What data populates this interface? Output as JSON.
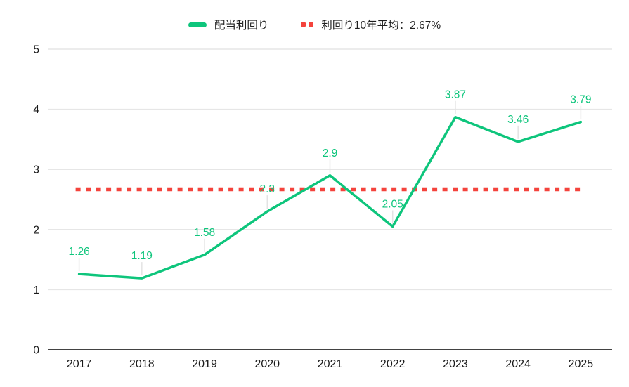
{
  "legend": {
    "series_label": "配当利回り",
    "average_label": "利回り10年平均：2.67%"
  },
  "colors": {
    "series_line": "#0ec57c",
    "series_label_text": "#0ec57c",
    "average_line": "#f4433c",
    "gridline": "#e6e6e6",
    "zero_axis": "#424242",
    "axis_tick_text": "#1a1a1a",
    "callout_line": "#e3e3e3",
    "background": "#ffffff"
  },
  "chart_data": {
    "type": "line",
    "categories": [
      "2017",
      "2018",
      "2019",
      "2020",
      "2021",
      "2022",
      "2023",
      "2024",
      "2025"
    ],
    "series": [
      {
        "name": "配当利回り",
        "values": [
          1.26,
          1.19,
          1.58,
          2.3,
          2.9,
          2.05,
          3.87,
          3.46,
          3.79
        ],
        "data_labels": [
          "1.26",
          "1.19",
          "1.58",
          "2.3",
          "2.9",
          "2.05",
          "3.87",
          "3.46",
          "3.79"
        ],
        "color": "#0ec57c",
        "style": "solid"
      },
      {
        "name": "利回り10年平均：2.67%",
        "constant_value": 2.67,
        "color": "#f4433c",
        "style": "dotted"
      }
    ],
    "title": "",
    "xlabel": "",
    "ylabel": "",
    "ylim": [
      0,
      5
    ],
    "yticks": [
      0,
      1,
      2,
      3,
      4,
      5
    ],
    "grid": "horizontal",
    "legend_position": "top"
  }
}
